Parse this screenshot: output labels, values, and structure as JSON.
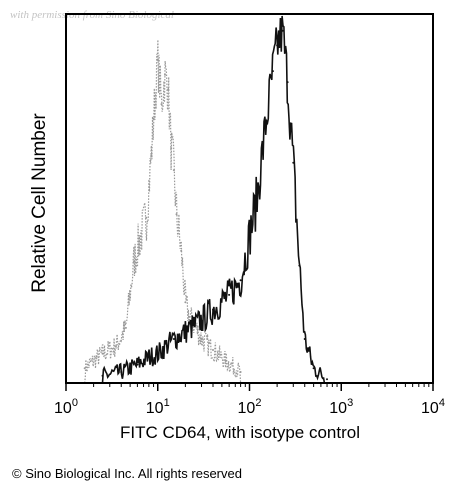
{
  "watermark": "with permission from Sino Biological",
  "footer": {
    "copyright": "© Sino Biological Inc. All rights reserved"
  },
  "chart_data": {
    "type": "area",
    "title": "",
    "xlabel": "FITC CD64, with isotype control",
    "ylabel": "Relative Cell Number",
    "x_scale": "log",
    "xlim": [
      1,
      10000
    ],
    "ylim": [
      0,
      100
    ],
    "x_ticks": [
      {
        "value": 1,
        "base": "10",
        "exp": "0"
      },
      {
        "value": 10,
        "base": "10",
        "exp": "1"
      },
      {
        "value": 100,
        "base": "10",
        "exp": "2"
      },
      {
        "value": 1000,
        "base": "10",
        "exp": "3"
      },
      {
        "value": 10000,
        "base": "10",
        "exp": "4"
      }
    ],
    "grid": false,
    "legend": "none",
    "colors": {
      "isotype": "#999999",
      "cd64": "#111111"
    },
    "series": [
      {
        "style": "dotted",
        "x": [
          1.6,
          2.5,
          3.5,
          4.5,
          5.5,
          6.5,
          7.5,
          8.5,
          9.0,
          10.0,
          11.0,
          12.0,
          13.0,
          14.0,
          15.0,
          16.0,
          18.0,
          20.0,
          22.0,
          25.0,
          30.0,
          40.0,
          55.0,
          80.0
        ],
        "y": [
          4,
          8,
          10,
          15,
          33,
          40,
          45,
          62,
          72,
          88,
          76,
          84,
          80,
          64,
          58,
          46,
          36,
          22,
          18,
          16,
          12,
          9,
          6,
          3
        ]
      },
      {
        "style": "solid",
        "x": [
          2.5,
          4.0,
          6.0,
          8.0,
          10.0,
          15.0,
          20.0,
          30.0,
          40.0,
          60.0,
          80.0,
          100.0,
          120.0,
          150.0,
          180.0,
          200.0,
          230.0,
          260.0,
          300.0,
          350.0,
          400.0,
          500.0,
          700.0
        ],
        "y": [
          2,
          3,
          5,
          7,
          8,
          12,
          14,
          17,
          20,
          24,
          28,
          40,
          50,
          70,
          85,
          92,
          96,
          82,
          60,
          32,
          12,
          4,
          1
        ]
      }
    ]
  }
}
